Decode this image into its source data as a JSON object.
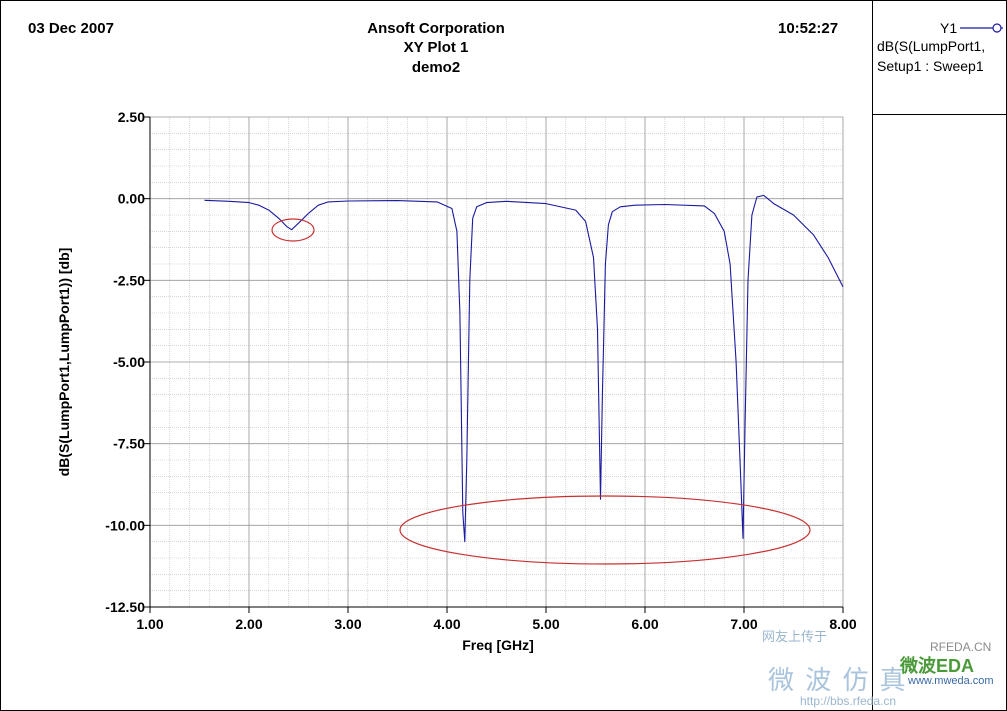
{
  "header": {
    "date": "03 Dec 2007",
    "company": "Ansoft Corporation",
    "plot_title": "XY Plot 1",
    "design": "demo2",
    "time": "10:52:27"
  },
  "legend": {
    "trace_name": "Y1",
    "line1": "dB(S(LumpPort1,",
    "line2": "Setup1 : Sweep1"
  },
  "watermark": {
    "line1": "网友上传于",
    "brand": "RFEDA.CN",
    "chinese": "微 波 仿 真",
    "logo": "微波EDA",
    "site1": "www.mweda.com",
    "site2": "http://bbs.rfeda.cn"
  },
  "colors": {
    "trace": "#1a1aa0",
    "annotation": "#c83030",
    "grid": "#bdbdbd"
  },
  "chart_data": {
    "type": "line",
    "title": "XY Plot 1",
    "xlabel": "Freq [GHz]",
    "ylabel": "dB(S(LumpPort1,LumpPort1)) [db]",
    "xlim": [
      1.0,
      8.0
    ],
    "ylim": [
      -12.5,
      2.5
    ],
    "xticks": [
      "1.00",
      "2.00",
      "3.00",
      "4.00",
      "5.00",
      "6.00",
      "7.00",
      "8.00"
    ],
    "yticks": [
      "2.50",
      "0.00",
      "-2.50",
      "-5.00",
      "-7.50",
      "-10.00",
      "-12.50"
    ],
    "grid": true,
    "legend_position": "top-right",
    "series": [
      {
        "name": "dB(S(LumpPort1,LumpPort1))",
        "x": [
          1.55,
          1.8,
          2.0,
          2.1,
          2.2,
          2.3,
          2.38,
          2.43,
          2.5,
          2.6,
          2.7,
          2.8,
          3.0,
          3.5,
          3.9,
          4.05,
          4.1,
          4.13,
          4.16,
          4.18,
          4.2,
          4.23,
          4.26,
          4.3,
          4.4,
          4.6,
          5.0,
          5.3,
          5.4,
          5.48,
          5.52,
          5.55,
          5.57,
          5.6,
          5.63,
          5.67,
          5.75,
          5.9,
          6.2,
          6.6,
          6.7,
          6.8,
          6.86,
          6.92,
          6.96,
          6.99,
          7.01,
          7.04,
          7.08,
          7.13,
          7.2,
          7.3,
          7.5,
          7.7,
          7.85,
          8.0
        ],
        "y": [
          -0.05,
          -0.08,
          -0.12,
          -0.2,
          -0.35,
          -0.6,
          -0.85,
          -0.95,
          -0.75,
          -0.45,
          -0.2,
          -0.1,
          -0.07,
          -0.06,
          -0.1,
          -0.3,
          -1.0,
          -3.5,
          -9.6,
          -10.5,
          -8.0,
          -2.5,
          -0.6,
          -0.25,
          -0.12,
          -0.08,
          -0.15,
          -0.35,
          -0.7,
          -1.8,
          -4.0,
          -9.2,
          -6.0,
          -2.0,
          -0.8,
          -0.4,
          -0.25,
          -0.2,
          -0.18,
          -0.22,
          -0.45,
          -1.0,
          -2.0,
          -5.0,
          -8.0,
          -10.4,
          -7.0,
          -2.5,
          -0.5,
          0.05,
          0.1,
          -0.15,
          -0.5,
          -1.1,
          -1.8,
          -2.7
        ]
      }
    ]
  }
}
